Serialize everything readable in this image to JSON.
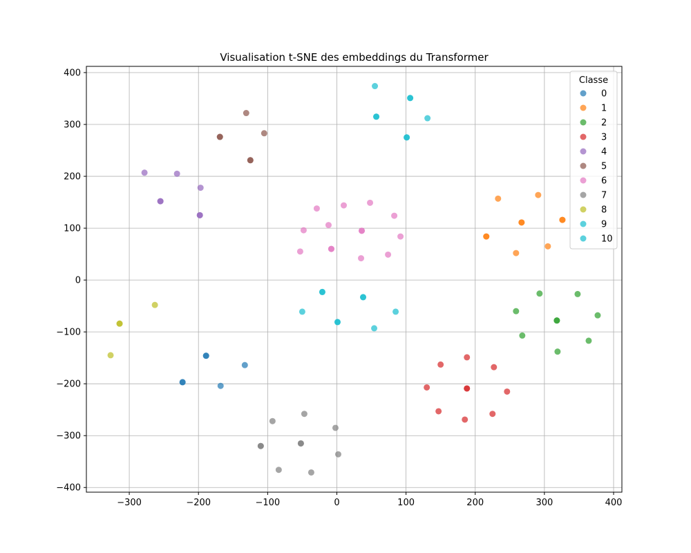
{
  "chart_data": {
    "type": "scatter",
    "title": "Visualisation t-SNE des embeddings du Transformer",
    "xlabel": "",
    "ylabel": "",
    "xlim": [
      -362,
      412
    ],
    "ylim": [
      -409,
      412
    ],
    "xticks": [
      -300,
      -200,
      -100,
      0,
      100,
      200,
      300,
      400
    ],
    "yticks": [
      -400,
      -300,
      -200,
      -100,
      0,
      100,
      200,
      300,
      400
    ],
    "xtick_labels": [
      "−300",
      "−200",
      "−100",
      "0",
      "100",
      "200",
      "300",
      "400"
    ],
    "ytick_labels": [
      "−400",
      "−300",
      "−200",
      "−100",
      "0",
      "100",
      "200",
      "300",
      "400"
    ],
    "grid": true,
    "legend": {
      "title": "Classe",
      "placement": "top-right"
    },
    "series": [
      {
        "name": "0",
        "color": "#1f77b4",
        "points": [
          [
            -189,
            -146
          ],
          [
            -189,
            -146
          ],
          [
            -223,
            -197
          ],
          [
            -223,
            -197
          ],
          [
            -168,
            -204
          ],
          [
            -133,
            -164
          ]
        ]
      },
      {
        "name": "1",
        "color": "#ff7f0e",
        "points": [
          [
            216,
            84
          ],
          [
            216,
            84
          ],
          [
            233,
            157
          ],
          [
            267,
            111
          ],
          [
            267,
            111
          ],
          [
            259,
            52
          ],
          [
            291,
            164
          ],
          [
            305,
            65
          ],
          [
            326,
            116
          ],
          [
            326,
            116
          ]
        ]
      },
      {
        "name": "2",
        "color": "#2ca02c",
        "points": [
          [
            259,
            -60
          ],
          [
            268,
            -107
          ],
          [
            293,
            -26
          ],
          [
            318,
            -78
          ],
          [
            318,
            -78
          ],
          [
            319,
            -138
          ],
          [
            348,
            -27
          ],
          [
            364,
            -117
          ],
          [
            377,
            -68
          ]
        ]
      },
      {
        "name": "3",
        "color": "#d62728",
        "points": [
          [
            130,
            -207
          ],
          [
            147,
            -253
          ],
          [
            150,
            -163
          ],
          [
            185,
            -269
          ],
          [
            188,
            -149
          ],
          [
            188,
            -209
          ],
          [
            188,
            -209
          ],
          [
            225,
            -258
          ],
          [
            227,
            -168
          ],
          [
            246,
            -215
          ]
        ]
      },
      {
        "name": "4",
        "color": "#9467bd",
        "points": [
          [
            -278,
            207
          ],
          [
            -255,
            152
          ],
          [
            -255,
            152
          ],
          [
            -231,
            205
          ],
          [
            -198,
            125
          ],
          [
            -198,
            125
          ],
          [
            -197,
            178
          ]
        ]
      },
      {
        "name": "5",
        "color": "#8c564b",
        "points": [
          [
            -169,
            276
          ],
          [
            -169,
            276
          ],
          [
            -131,
            322
          ],
          [
            -125,
            231
          ],
          [
            -125,
            231
          ],
          [
            -105,
            283
          ]
        ]
      },
      {
        "name": "6",
        "color": "#e377c2",
        "points": [
          [
            -53,
            55
          ],
          [
            -48,
            96
          ],
          [
            -29,
            138
          ],
          [
            -12,
            106
          ],
          [
            -8,
            60
          ],
          [
            -8,
            60
          ],
          [
            10,
            144
          ],
          [
            36,
            95
          ],
          [
            36,
            95
          ],
          [
            35,
            42
          ],
          [
            48,
            149
          ],
          [
            74,
            49
          ],
          [
            83,
            124
          ],
          [
            92,
            84
          ]
        ]
      },
      {
        "name": "7",
        "color": "#7f7f7f",
        "points": [
          [
            -110,
            -320
          ],
          [
            -110,
            -320
          ],
          [
            -93,
            -272
          ],
          [
            -84,
            -366
          ],
          [
            -52,
            -315
          ],
          [
            -52,
            -315
          ],
          [
            -47,
            -258
          ],
          [
            -37,
            -371
          ],
          [
            -2,
            -285
          ],
          [
            2,
            -336
          ]
        ]
      },
      {
        "name": "8",
        "color": "#bcbd22",
        "points": [
          [
            -314,
            -84
          ],
          [
            -314,
            -84
          ],
          [
            -327,
            -145
          ],
          [
            -263,
            -48
          ]
        ]
      },
      {
        "name": "9",
        "color": "#17becf",
        "points": [
          [
            -50,
            -61
          ],
          [
            -21,
            -23
          ],
          [
            -21,
            -23
          ],
          [
            1,
            -81
          ],
          [
            1,
            -81
          ],
          [
            38,
            -33
          ],
          [
            38,
            -33
          ],
          [
            54,
            -93
          ],
          [
            85,
            -61
          ]
        ]
      },
      {
        "name": "10",
        "color": "#17becf",
        "points": [
          [
            55,
            374
          ],
          [
            57,
            315
          ],
          [
            57,
            315
          ],
          [
            101,
            275
          ],
          [
            101,
            275
          ],
          [
            106,
            351
          ],
          [
            106,
            351
          ],
          [
            131,
            312
          ]
        ]
      }
    ]
  }
}
